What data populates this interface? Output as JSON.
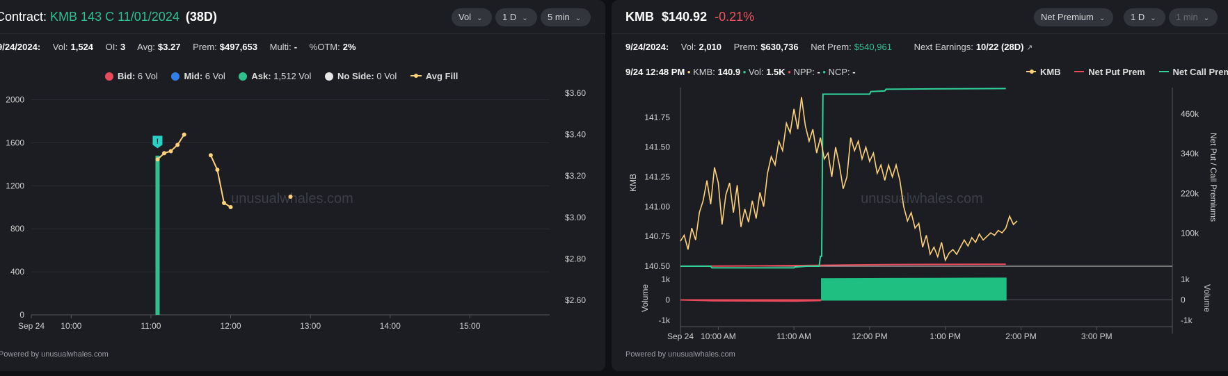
{
  "left": {
    "title_prefix": "Contract:",
    "contract": "KMB 143 C 11/01/2024",
    "dte": "(38D)",
    "controls": [
      "Vol",
      "1 D",
      "5 min"
    ],
    "stats": {
      "date": "9/24/2024:",
      "vol_label": "Vol:",
      "vol": "1,524",
      "oi_label": "OI:",
      "oi": "3",
      "avg_label": "Avg:",
      "avg": "$3.27",
      "prem_label": "Prem:",
      "prem": "$497,653",
      "multi_label": "Multi:",
      "multi": "-",
      "otm_label": "%OTM:",
      "otm": "2%"
    },
    "legend": [
      {
        "label": "Bid:",
        "value": "6 Vol",
        "color": "#e94a5b"
      },
      {
        "label": "Mid:",
        "value": "6 Vol",
        "color": "#2f7fe6"
      },
      {
        "label": "Ask:",
        "value": "1,512 Vol",
        "color": "#2fc08d"
      },
      {
        "label": "No Side:",
        "value": "0 Vol",
        "color": "#e6e6e6"
      },
      {
        "label": "Avg Fill",
        "value": "",
        "color": "#ffd27a"
      }
    ],
    "watermark": "unusualwhales.com",
    "footer": "Powered by unusualwhales.com",
    "alert_glyph": "!"
  },
  "right": {
    "ticker": "KMB",
    "price": "$140.92",
    "change": "-0.21%",
    "controls": [
      "Net Premium",
      "1 D",
      "1 min"
    ],
    "stats": {
      "date": "9/24/2024:",
      "vol_label": "Vol:",
      "vol": "2,010",
      "prem_label": "Prem:",
      "prem": "$630,736",
      "netprem_label": "Net Prem:",
      "netprem": "$540,961",
      "earn_label": "Next Earnings:",
      "earn": "10/22 (28D)"
    },
    "info": {
      "time": "9/24 12:48 PM",
      "kmb_label": "KMB:",
      "kmb": "140.9",
      "vol_label": "Vol:",
      "vol": "1.5K",
      "npp_label": "NPP:",
      "npp": "-",
      "ncp_label": "NCP:",
      "ncp": "-"
    },
    "legend": [
      {
        "label": "KMB",
        "color": "#ffd27a"
      },
      {
        "label": "Net Put Prem",
        "color": "#e94a5b"
      },
      {
        "label": "Net Call Prem",
        "color": "#2fd39a"
      }
    ],
    "watermark": "unusualwhales.com",
    "footer": "Powered by unusualwhales.com"
  },
  "chart_data": [
    {
      "type": "bar",
      "title": "",
      "xlabel": "",
      "ylabel": "",
      "x_ticks": [
        "Sep 24",
        "10:00",
        "11:00",
        "12:00",
        "13:00",
        "14:00",
        "15:00"
      ],
      "y_ticks": [
        "0",
        "400",
        "800",
        "1200",
        "1600",
        "2000"
      ],
      "y2_ticks": [
        "$2.60",
        "$2.80",
        "$3.00",
        "$3.20",
        "$3.40",
        "$3.60"
      ],
      "ylim": [
        0,
        2100
      ],
      "y2lim": [
        2.53,
        3.62
      ],
      "xlim_minutes_after_0930": [
        0,
        390
      ],
      "series": [
        {
          "name": "Ask",
          "color": "#2fc08d",
          "bars": [
            {
              "t": "11:05",
              "value": 1480
            }
          ]
        },
        {
          "name": "Avg Fill",
          "color": "#ffd27a",
          "points": [
            {
              "t": "11:05",
              "value": 3.28
            },
            {
              "t": "11:10",
              "value": 3.31
            },
            {
              "t": "11:15",
              "value": 3.32
            },
            {
              "t": "11:20",
              "value": 3.35
            },
            {
              "t": "11:25",
              "value": 3.4
            },
            {
              "t": "11:45",
              "value": 3.3
            },
            {
              "t": "11:50",
              "value": 3.23
            },
            {
              "t": "11:55",
              "value": 3.07
            },
            {
              "t": "12:00",
              "value": 3.05
            },
            {
              "t": "12:45",
              "value": 3.1
            }
          ]
        }
      ],
      "alert_marker": {
        "t": "11:05",
        "value": 1600
      }
    },
    {
      "type": "line",
      "title": "",
      "xlabel": "",
      "ylabel": "KMB",
      "y2label": "Net Put / Call Premiums",
      "x_ticks": [
        "Sep 24",
        "10:00 AM",
        "11:00 AM",
        "12:00 PM",
        "1:00 PM",
        "2:00 PM",
        "3:00 PM"
      ],
      "y_ticks": [
        "140.50",
        "140.75",
        "141.00",
        "141.25",
        "141.50",
        "141.75"
      ],
      "y2_ticks": [
        "100k",
        "220k",
        "340k",
        "460k"
      ],
      "ylim": [
        140.5,
        142.0
      ],
      "y2lim": [
        0,
        540000
      ],
      "xlim_minutes_after_0930": [
        0,
        390
      ],
      "series": [
        {
          "name": "KMB",
          "color": "#ffd27a",
          "points": [
            [
              0,
              140.71
            ],
            [
              3,
              140.76
            ],
            [
              6,
              140.64
            ],
            [
              9,
              140.82
            ],
            [
              12,
              140.72
            ],
            [
              15,
              140.95
            ],
            [
              18,
              141.05
            ],
            [
              21,
              141.22
            ],
            [
              24,
              141.02
            ],
            [
              27,
              141.33
            ],
            [
              30,
              141.2
            ],
            [
              33,
              140.85
            ],
            [
              36,
              141.1
            ],
            [
              39,
              141.2
            ],
            [
              42,
              140.95
            ],
            [
              45,
              141.18
            ],
            [
              48,
              140.83
            ],
            [
              51,
              140.98
            ],
            [
              54,
              140.87
            ],
            [
              57,
              141.05
            ],
            [
              60,
              140.9
            ],
            [
              63,
              141.12
            ],
            [
              66,
              141.0
            ],
            [
              69,
              141.28
            ],
            [
              72,
              141.42
            ],
            [
              75,
              141.35
            ],
            [
              78,
              141.55
            ],
            [
              81,
              141.47
            ],
            [
              84,
              141.7
            ],
            [
              87,
              141.62
            ],
            [
              90,
              141.82
            ],
            [
              93,
              141.65
            ],
            [
              96,
              141.92
            ],
            [
              99,
              141.68
            ],
            [
              102,
              141.55
            ],
            [
              105,
              141.65
            ],
            [
              108,
              141.45
            ],
            [
              111,
              141.58
            ],
            [
              114,
              141.4
            ],
            [
              117,
              141.45
            ],
            [
              120,
              141.25
            ],
            [
              123,
              141.5
            ],
            [
              126,
              141.35
            ],
            [
              129,
              141.15
            ],
            [
              132,
              141.25
            ],
            [
              135,
              141.58
            ],
            [
              138,
              141.47
            ],
            [
              141,
              141.55
            ],
            [
              144,
              141.4
            ],
            [
              147,
              141.5
            ],
            [
              150,
              141.38
            ],
            [
              153,
              141.45
            ],
            [
              156,
              141.28
            ],
            [
              159,
              141.35
            ],
            [
              162,
              141.22
            ],
            [
              165,
              141.35
            ],
            [
              168,
              141.25
            ],
            [
              171,
              141.35
            ],
            [
              174,
              141.22
            ],
            [
              177,
              141.0
            ],
            [
              180,
              140.88
            ],
            [
              183,
              140.95
            ],
            [
              186,
              140.82
            ],
            [
              189,
              140.86
            ],
            [
              192,
              140.66
            ],
            [
              195,
              140.76
            ],
            [
              198,
              140.6
            ],
            [
              201,
              140.66
            ],
            [
              204,
              140.58
            ],
            [
              207,
              140.7
            ],
            [
              210,
              140.55
            ],
            [
              213,
              140.61
            ],
            [
              216,
              140.64
            ],
            [
              219,
              140.6
            ],
            [
              222,
              140.66
            ],
            [
              225,
              140.72
            ],
            [
              228,
              140.67
            ],
            [
              231,
              140.74
            ],
            [
              234,
              140.7
            ],
            [
              237,
              140.77
            ],
            [
              240,
              140.72
            ],
            [
              243,
              140.75
            ],
            [
              246,
              140.78
            ],
            [
              249,
              140.76
            ],
            [
              252,
              140.8
            ],
            [
              255,
              140.78
            ],
            [
              258,
              140.82
            ],
            [
              261,
              140.92
            ],
            [
              264,
              140.85
            ],
            [
              267,
              140.88
            ]
          ]
        },
        {
          "name": "Net Put Prem",
          "color": "#e94a5b",
          "points": [
            [
              0,
              0
            ],
            [
              62,
              1000
            ],
            [
              95,
              2000
            ],
            [
              140,
              4000
            ],
            [
              170,
              5000
            ],
            [
              200,
              5500
            ],
            [
              258,
              6000
            ]
          ]
        },
        {
          "name": "Net Call Prem",
          "color": "#2fd39a",
          "points": [
            [
              0,
              0
            ],
            [
              24,
              0
            ],
            [
              25,
              -5000
            ],
            [
              90,
              -5000
            ],
            [
              91,
              -3000
            ],
            [
              100,
              0
            ],
            [
              110,
              0
            ],
            [
              111,
              30000
            ],
            [
              112,
              30000
            ],
            [
              113,
              520000
            ],
            [
              150,
              520000
            ],
            [
              151,
              528000
            ],
            [
              162,
              530000
            ],
            [
              163,
              535000
            ],
            [
              200,
              536000
            ],
            [
              258,
              537000
            ]
          ]
        }
      ]
    },
    {
      "type": "area",
      "title": "",
      "ylabel": "Volume",
      "y_ticks": [
        "-1k",
        "0",
        "1k"
      ],
      "ylim": [
        -1300,
        1300
      ],
      "series": [
        {
          "name": "Call Volume",
          "color": "#1fbf82",
          "points": [
            [
              112,
              1020
            ],
            [
              150,
              1030
            ],
            [
              200,
              1040
            ],
            [
              258,
              1050
            ]
          ]
        },
        {
          "name": "Put Volume",
          "color": "#e94a5b",
          "points": [
            [
              0,
              0
            ],
            [
              25,
              -40
            ],
            [
              90,
              -60
            ],
            [
              111,
              -30
            ]
          ]
        }
      ]
    }
  ]
}
